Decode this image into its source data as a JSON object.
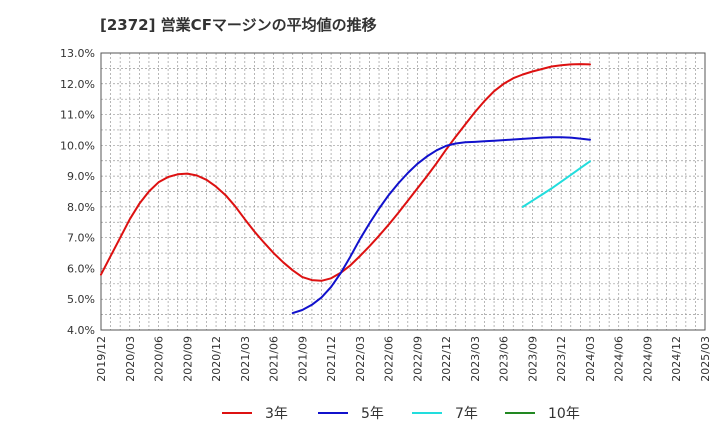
{
  "chart_data": {
    "type": "line",
    "title": "[2372]  営業CFマージンの平均値の推移",
    "xlabel": "",
    "ylabel": "",
    "ylim": [
      4.0,
      13.0
    ],
    "y_ticks": [
      "4.0%",
      "5.0%",
      "6.0%",
      "7.0%",
      "8.0%",
      "9.0%",
      "10.0%",
      "11.0%",
      "12.0%",
      "13.0%"
    ],
    "x_ticks": [
      "2019/12",
      "2020/03",
      "2020/06",
      "2020/09",
      "2020/12",
      "2021/03",
      "2021/06",
      "2021/09",
      "2021/12",
      "2022/03",
      "2022/06",
      "2022/09",
      "2022/12",
      "2023/03",
      "2023/06",
      "2023/09",
      "2023/12",
      "2024/03",
      "2024/06",
      "2024/09",
      "2024/12",
      "2025/03"
    ],
    "grid": true,
    "legend_position": "bottom",
    "series": [
      {
        "name": "3年",
        "color": "#dd1111",
        "x": [
          "2019/12",
          "2020/01",
          "2020/02",
          "2020/03",
          "2020/04",
          "2020/05",
          "2020/06",
          "2020/07",
          "2020/08",
          "2020/09",
          "2020/10",
          "2020/11",
          "2020/12",
          "2021/01",
          "2021/02",
          "2021/03",
          "2021/04",
          "2021/05",
          "2021/06",
          "2021/07",
          "2021/08",
          "2021/09",
          "2021/10",
          "2021/11",
          "2021/12",
          "2022/01",
          "2022/02",
          "2022/03",
          "2022/04",
          "2022/05",
          "2022/06",
          "2022/07",
          "2022/08",
          "2022/09",
          "2022/10",
          "2022/11",
          "2022/12",
          "2023/01",
          "2023/02",
          "2023/03",
          "2023/04",
          "2023/05",
          "2023/06",
          "2023/07",
          "2023/08",
          "2023/09",
          "2023/10",
          "2023/11",
          "2023/12",
          "2024/01",
          "2024/02",
          "2024/03"
        ],
        "values": [
          5.8,
          6.4,
          7.0,
          7.6,
          8.1,
          8.5,
          8.8,
          8.97,
          9.06,
          9.08,
          9.02,
          8.88,
          8.66,
          8.38,
          8.02,
          7.6,
          7.2,
          6.84,
          6.5,
          6.2,
          5.94,
          5.72,
          5.62,
          5.6,
          5.68,
          5.86,
          6.1,
          6.4,
          6.72,
          7.06,
          7.42,
          7.8,
          8.2,
          8.6,
          9.0,
          9.42,
          9.86,
          10.28,
          10.68,
          11.08,
          11.44,
          11.76,
          12.0,
          12.18,
          12.3,
          12.4,
          12.48,
          12.56,
          12.6,
          12.63,
          12.64,
          12.63
        ]
      },
      {
        "name": "5年",
        "color": "#1111cc",
        "x": [
          "2021/08",
          "2021/09",
          "2021/10",
          "2021/11",
          "2021/12",
          "2022/01",
          "2022/02",
          "2022/03",
          "2022/04",
          "2022/05",
          "2022/06",
          "2022/07",
          "2022/08",
          "2022/09",
          "2022/10",
          "2022/11",
          "2022/12",
          "2023/01",
          "2023/02",
          "2023/03",
          "2023/04",
          "2023/05",
          "2023/06",
          "2023/07",
          "2023/08",
          "2023/09",
          "2023/10",
          "2023/11",
          "2023/12",
          "2024/01",
          "2024/02",
          "2024/03"
        ],
        "values": [
          4.55,
          4.65,
          4.82,
          5.06,
          5.4,
          5.85,
          6.38,
          6.95,
          7.46,
          7.94,
          8.38,
          8.76,
          9.1,
          9.4,
          9.64,
          9.84,
          9.98,
          10.06,
          10.1,
          10.11,
          10.13,
          10.15,
          10.17,
          10.19,
          10.21,
          10.23,
          10.25,
          10.26,
          10.26,
          10.25,
          10.22,
          10.18
        ]
      },
      {
        "name": "7年",
        "color": "#22dddd",
        "x": [
          "2023/08",
          "2023/09",
          "2023/10",
          "2023/11",
          "2023/12",
          "2024/01",
          "2024/02",
          "2024/03"
        ],
        "values": [
          8.0,
          8.2,
          8.4,
          8.6,
          8.82,
          9.04,
          9.26,
          9.48
        ]
      },
      {
        "name": "10年",
        "color": "#228822",
        "x": [],
        "values": []
      }
    ]
  }
}
